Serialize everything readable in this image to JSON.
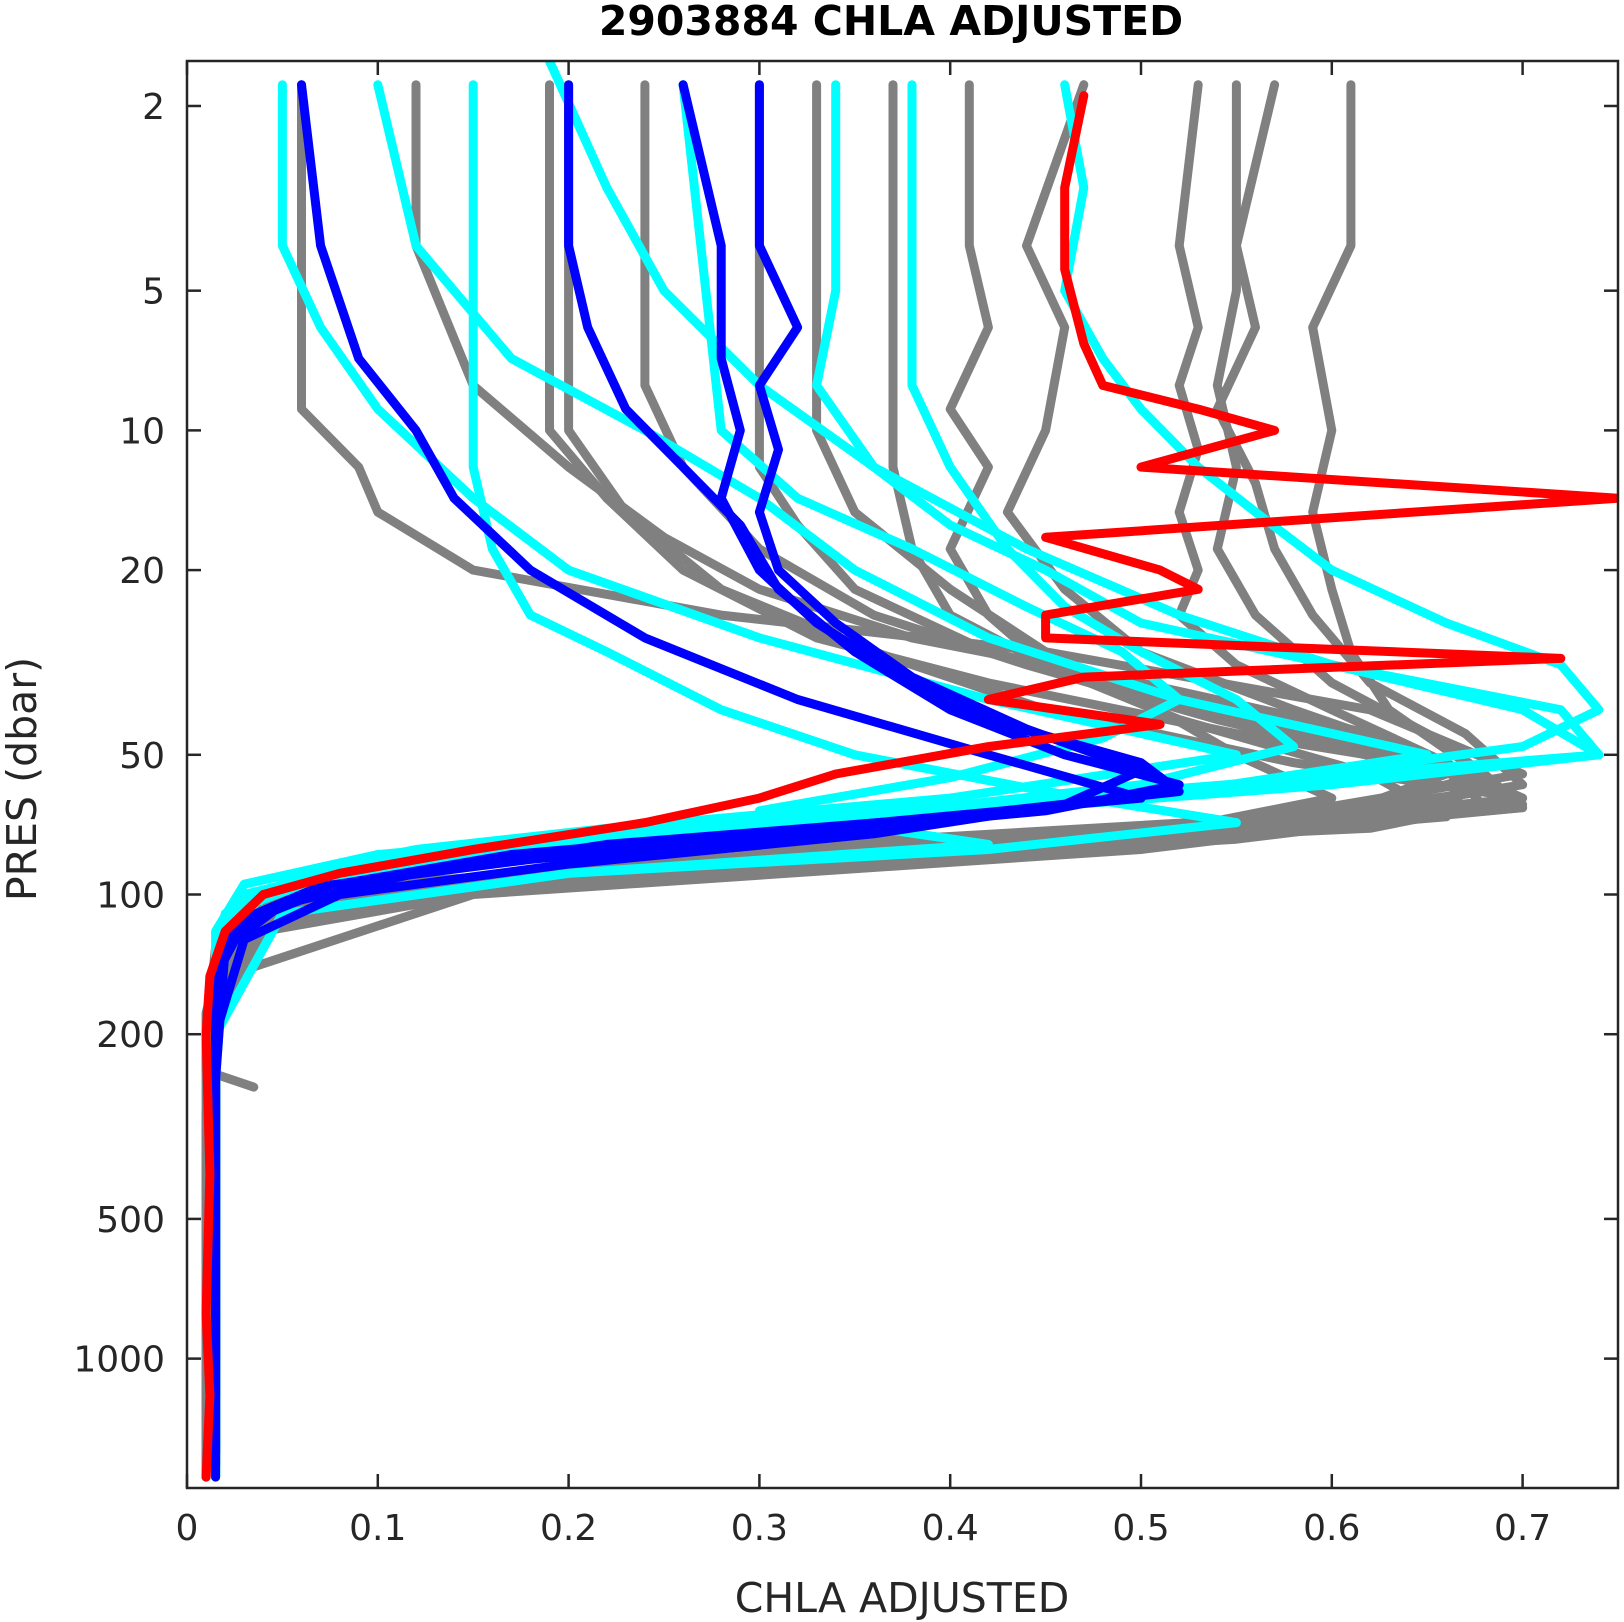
{
  "chart_data": {
    "type": "line",
    "title": "2903884  CHLA ADJUSTED",
    "xlabel": "CHLA ADJUSTED",
    "ylabel": "PRES (dbar)",
    "xlim": [
      0,
      0.75
    ],
    "ylim": [
      1.6,
      1900
    ],
    "y_scale": "log",
    "y_reversed": true,
    "grid": false,
    "x_ticks": [
      0,
      0.1,
      0.2,
      0.3,
      0.4,
      0.5,
      0.6,
      0.7
    ],
    "x_tick_labels": [
      "0",
      "0.1",
      "0.2",
      "0.3",
      "0.4",
      "0.5",
      "0.6",
      "0.7"
    ],
    "y_ticks": [
      2,
      5,
      10,
      20,
      50,
      100,
      200,
      500,
      1000
    ],
    "y_tick_labels": [
      "2",
      "5",
      "10",
      "20",
      "50",
      "100",
      "200",
      "500",
      "1000"
    ],
    "colors": {
      "gray": "#808080",
      "cyan": "#00ffff",
      "blue": "#0000ff",
      "red": "#ff0000"
    },
    "series": [
      {
        "color": "gray",
        "pres": [
          1.8,
          4.5,
          9,
          12,
          15,
          20,
          25,
          30,
          40,
          55,
          70,
          85,
          100,
          130,
          200,
          500,
          1000,
          1800
        ],
        "values": [
          0.06,
          0.06,
          0.06,
          0.09,
          0.1,
          0.15,
          0.28,
          0.45,
          0.62,
          0.7,
          0.55,
          0.25,
          0.05,
          0.015,
          0.01,
          0.01,
          0.01,
          0.01
        ]
      },
      {
        "color": "gray",
        "pres": [
          1.8,
          4,
          8,
          12,
          17,
          22,
          28,
          35,
          45,
          60,
          75,
          90,
          110,
          150,
          250,
          600,
          1200,
          1800
        ],
        "values": [
          0.12,
          0.12,
          0.15,
          0.2,
          0.25,
          0.3,
          0.38,
          0.5,
          0.62,
          0.68,
          0.5,
          0.2,
          0.04,
          0.015,
          0.012,
          0.01,
          0.01,
          0.01
        ]
      },
      {
        "color": "gray",
        "pres": [
          1.8,
          5,
          10,
          14,
          20,
          28,
          35,
          45,
          55,
          65,
          75,
          85,
          100,
          140,
          300,
          800,
          1500
        ],
        "values": [
          0.19,
          0.19,
          0.19,
          0.22,
          0.26,
          0.33,
          0.42,
          0.55,
          0.68,
          0.66,
          0.4,
          0.15,
          0.04,
          0.015,
          0.01,
          0.012,
          0.01
        ]
      },
      {
        "color": "gray",
        "pres": [
          1.8,
          6,
          10,
          15,
          22,
          30,
          40,
          52,
          62,
          72,
          82,
          95,
          120,
          180,
          400,
          900,
          1700
        ],
        "values": [
          0.2,
          0.2,
          0.2,
          0.23,
          0.28,
          0.36,
          0.45,
          0.58,
          0.7,
          0.62,
          0.32,
          0.1,
          0.03,
          0.012,
          0.01,
          0.012,
          0.01
        ]
      },
      {
        "color": "gray",
        "pres": [
          1.8,
          8,
          12,
          18,
          25,
          32,
          42,
          55,
          68,
          80,
          95,
          115,
          160,
          350,
          800,
          1600
        ],
        "values": [
          0.24,
          0.24,
          0.26,
          0.3,
          0.36,
          0.44,
          0.54,
          0.66,
          0.6,
          0.4,
          0.12,
          0.03,
          0.012,
          0.01,
          0.01,
          0.01
        ]
      },
      {
        "color": "gray",
        "pres": [
          1.8,
          8,
          12,
          16,
          22,
          30,
          38,
          50,
          62,
          75,
          90,
          110,
          150,
          300,
          900,
          1800
        ],
        "values": [
          0.3,
          0.3,
          0.3,
          0.32,
          0.35,
          0.42,
          0.52,
          0.65,
          0.7,
          0.5,
          0.2,
          0.05,
          0.015,
          0.01,
          0.01,
          0.01
        ]
      },
      {
        "color": "gray",
        "pres": [
          1.8,
          6,
          12,
          18,
          25,
          32,
          42,
          55,
          65,
          78,
          90,
          110,
          160,
          400,
          1000,
          1800
        ],
        "values": [
          0.37,
          0.37,
          0.37,
          0.38,
          0.4,
          0.45,
          0.55,
          0.68,
          0.7,
          0.48,
          0.2,
          0.05,
          0.015,
          0.01,
          0.01,
          0.01
        ]
      },
      {
        "color": "gray",
        "pres": [
          1.8,
          4,
          6,
          9,
          12,
          18,
          25,
          32,
          42,
          55,
          68,
          80,
          95,
          120,
          200,
          500,
          1200
        ],
        "values": [
          0.41,
          0.41,
          0.42,
          0.4,
          0.42,
          0.4,
          0.42,
          0.45,
          0.52,
          0.62,
          0.66,
          0.45,
          0.18,
          0.04,
          0.015,
          0.01,
          0.01
        ]
      },
      {
        "color": "gray",
        "pres": [
          1.8,
          4,
          6,
          10,
          15,
          22,
          30,
          40,
          52,
          65,
          78,
          92,
          115,
          180,
          450,
          1100
        ],
        "values": [
          0.47,
          0.44,
          0.46,
          0.45,
          0.43,
          0.46,
          0.5,
          0.58,
          0.66,
          0.7,
          0.5,
          0.2,
          0.04,
          0.015,
          0.01,
          0.01
        ]
      },
      {
        "color": "gray",
        "pres": [
          1.8,
          4,
          6,
          8,
          11,
          15,
          20,
          25,
          32,
          40,
          52,
          65,
          80,
          100,
          150,
          300,
          1000
        ],
        "values": [
          0.53,
          0.52,
          0.53,
          0.52,
          0.53,
          0.52,
          0.53,
          0.52,
          0.55,
          0.6,
          0.66,
          0.68,
          0.5,
          0.15,
          0.02,
          0.01,
          0.01
        ]
      },
      {
        "color": "gray",
        "pres": [
          1.8,
          5,
          8,
          12,
          18,
          25,
          35,
          45,
          55,
          68,
          80,
          95,
          120,
          200,
          600,
          1400
        ],
        "values": [
          0.55,
          0.55,
          0.54,
          0.55,
          0.54,
          0.56,
          0.6,
          0.65,
          0.68,
          0.6,
          0.38,
          0.12,
          0.03,
          0.012,
          0.01,
          0.01
        ]
      },
      {
        "color": "gray",
        "pres": [
          1.8,
          4,
          6,
          9,
          13,
          18,
          25,
          35,
          45,
          58,
          70,
          85,
          105,
          150,
          350,
          900
        ],
        "values": [
          0.57,
          0.55,
          0.56,
          0.54,
          0.56,
          0.57,
          0.59,
          0.62,
          0.67,
          0.7,
          0.58,
          0.3,
          0.06,
          0.015,
          0.01,
          0.01
        ]
      },
      {
        "color": "gray",
        "pres": [
          1.8,
          4,
          6,
          10,
          15,
          22,
          30,
          40,
          52,
          64,
          76,
          90,
          110,
          160,
          400,
          1000
        ],
        "values": [
          0.61,
          0.61,
          0.59,
          0.6,
          0.59,
          0.6,
          0.61,
          0.63,
          0.67,
          0.7,
          0.55,
          0.25,
          0.05,
          0.015,
          0.01,
          0.01
        ]
      },
      {
        "color": "gray",
        "pres": [
          1.8,
          10,
          15,
          22,
          30,
          38,
          50,
          62,
          72,
          85,
          100,
          125,
          180,
          240,
          260
        ],
        "values": [
          0.33,
          0.33,
          0.35,
          0.4,
          0.45,
          0.5,
          0.55,
          0.6,
          0.52,
          0.3,
          0.08,
          0.02,
          0.01,
          0.01,
          0.035
        ]
      },
      {
        "color": "cyan",
        "pres": [
          1.8,
          4,
          6,
          9,
          14,
          20,
          28,
          38,
          50,
          62,
          72,
          80,
          88,
          95,
          105,
          130,
          250,
          700,
          1800
        ],
        "values": [
          0.05,
          0.05,
          0.07,
          0.1,
          0.15,
          0.2,
          0.3,
          0.42,
          0.55,
          0.4,
          0.22,
          0.12,
          0.07,
          0.05,
          0.03,
          0.02,
          0.015,
          0.015,
          0.015
        ]
      },
      {
        "color": "cyan",
        "pres": [
          1.8,
          4,
          7,
          10,
          14,
          20,
          28,
          38,
          50,
          62,
          72,
          82,
          95,
          120,
          300,
          900,
          1700
        ],
        "values": [
          0.1,
          0.12,
          0.17,
          0.24,
          0.3,
          0.35,
          0.42,
          0.52,
          0.65,
          0.5,
          0.25,
          0.1,
          0.03,
          0.015,
          0.015,
          0.015,
          0.015
        ]
      },
      {
        "color": "cyan",
        "pres": [
          1.8,
          12,
          18,
          25,
          30,
          40,
          50,
          60,
          70,
          80,
          90,
          110,
          200,
          600,
          1800
        ],
        "values": [
          0.15,
          0.15,
          0.16,
          0.18,
          0.22,
          0.28,
          0.35,
          0.45,
          0.55,
          0.42,
          0.2,
          0.05,
          0.015,
          0.015,
          0.015
        ]
      },
      {
        "color": "cyan",
        "pres": [
          1.6,
          3,
          5,
          8,
          12,
          18,
          25,
          32,
          40,
          50,
          60,
          72,
          85,
          100,
          130,
          300,
          900,
          1800
        ],
        "values": [
          0.19,
          0.22,
          0.25,
          0.3,
          0.36,
          0.44,
          0.52,
          0.6,
          0.7,
          0.74,
          0.5,
          0.25,
          0.1,
          0.03,
          0.015,
          0.015,
          0.015,
          0.015
        ]
      },
      {
        "color": "cyan",
        "pres": [
          1.8,
          5,
          8,
          12,
          16,
          20,
          26,
          32,
          40,
          50,
          58,
          68,
          80,
          92,
          110,
          160,
          500,
          1600
        ],
        "values": [
          0.34,
          0.34,
          0.33,
          0.36,
          0.4,
          0.45,
          0.5,
          0.6,
          0.72,
          0.74,
          0.6,
          0.38,
          0.2,
          0.07,
          0.02,
          0.015,
          0.015,
          0.015
        ]
      },
      {
        "color": "cyan",
        "pres": [
          1.8,
          3,
          5,
          7,
          9,
          12,
          15,
          20,
          26,
          32,
          40,
          48,
          58,
          70,
          85,
          100,
          130,
          300,
          1000
        ],
        "values": [
          0.46,
          0.47,
          0.46,
          0.48,
          0.5,
          0.53,
          0.56,
          0.6,
          0.66,
          0.72,
          0.74,
          0.7,
          0.55,
          0.35,
          0.15,
          0.04,
          0.015,
          0.015,
          0.015
        ]
      },
      {
        "color": "cyan",
        "pres": [
          1.8,
          8,
          12,
          18,
          24,
          30,
          38,
          48,
          58,
          68,
          78,
          90,
          105,
          150,
          500,
          1500
        ],
        "values": [
          0.38,
          0.38,
          0.4,
          0.43,
          0.46,
          0.5,
          0.55,
          0.58,
          0.5,
          0.35,
          0.2,
          0.08,
          0.025,
          0.015,
          0.015,
          0.015
        ]
      },
      {
        "color": "cyan",
        "pres": [
          1.8,
          10,
          14,
          18,
          24,
          30,
          38,
          46,
          56,
          66,
          78,
          90,
          110,
          200,
          800,
          1800
        ],
        "values": [
          0.26,
          0.28,
          0.32,
          0.38,
          0.44,
          0.49,
          0.52,
          0.48,
          0.4,
          0.3,
          0.42,
          0.2,
          0.05,
          0.015,
          0.015,
          0.015
        ]
      },
      {
        "color": "blue",
        "pres": [
          1.8,
          4,
          7,
          10,
          14,
          20,
          28,
          38,
          50,
          62,
          72,
          82,
          95,
          115,
          150,
          300,
          800,
          1800
        ],
        "values": [
          0.06,
          0.07,
          0.09,
          0.12,
          0.14,
          0.18,
          0.24,
          0.32,
          0.42,
          0.5,
          0.33,
          0.17,
          0.08,
          0.03,
          0.015,
          0.015,
          0.015,
          0.015
        ]
      },
      {
        "color": "blue",
        "pres": [
          1.8,
          4,
          6,
          9,
          12,
          16,
          22,
          30,
          40,
          50,
          58,
          66,
          74,
          84,
          96,
          115,
          150,
          400,
          1200
        ],
        "values": [
          0.2,
          0.2,
          0.21,
          0.23,
          0.26,
          0.29,
          0.31,
          0.35,
          0.4,
          0.46,
          0.52,
          0.45,
          0.32,
          0.18,
          0.07,
          0.025,
          0.015,
          0.015,
          0.015
        ]
      },
      {
        "color": "blue",
        "pres": [
          1.8,
          4,
          7,
          10,
          14,
          20,
          26,
          33,
          42,
          52,
          60,
          68,
          78,
          90,
          105,
          130,
          250,
          700,
          1700
        ],
        "values": [
          0.26,
          0.28,
          0.28,
          0.29,
          0.28,
          0.3,
          0.33,
          0.37,
          0.42,
          0.5,
          0.52,
          0.4,
          0.22,
          0.12,
          0.05,
          0.02,
          0.015,
          0.015,
          0.015
        ]
      },
      {
        "color": "blue",
        "pres": [
          1.8,
          4,
          6,
          8,
          11,
          15,
          20,
          26,
          34,
          44,
          54,
          64,
          74,
          86,
          100,
          125,
          200,
          600,
          1600
        ],
        "values": [
          0.3,
          0.3,
          0.32,
          0.3,
          0.31,
          0.3,
          0.31,
          0.34,
          0.38,
          0.44,
          0.5,
          0.46,
          0.36,
          0.2,
          0.08,
          0.03,
          0.015,
          0.015,
          0.015
        ]
      },
      {
        "color": "red",
        "pres": [
          1.9,
          3,
          4.5,
          6.5,
          8,
          9,
          10,
          12,
          14,
          17,
          20,
          22,
          25,
          28,
          31,
          34,
          38,
          43,
          48,
          55,
          62,
          70,
          80,
          90,
          100,
          120,
          150,
          200,
          400,
          800,
          1200,
          1800
        ],
        "values": [
          0.47,
          0.46,
          0.46,
          0.47,
          0.48,
          0.53,
          0.57,
          0.5,
          0.75,
          0.45,
          0.51,
          0.53,
          0.45,
          0.45,
          0.72,
          0.47,
          0.42,
          0.51,
          0.42,
          0.34,
          0.3,
          0.24,
          0.15,
          0.08,
          0.04,
          0.02,
          0.012,
          0.01,
          0.012,
          0.01,
          0.012,
          0.01
        ]
      }
    ]
  }
}
